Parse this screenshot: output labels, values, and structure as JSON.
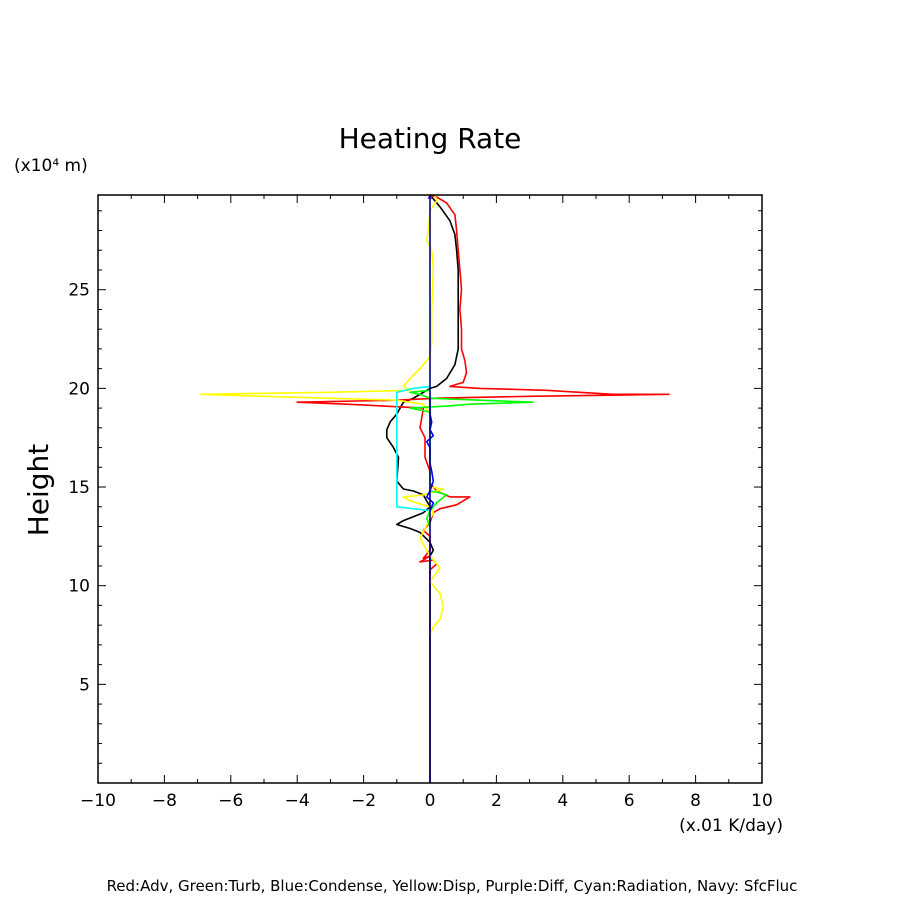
{
  "chart_data": {
    "type": "line",
    "title": "Heating Rate",
    "ylabel": "Height",
    "yunit": "(x10⁴ m)",
    "xunit": "(x.01 K/day)",
    "xlim": [
      -10,
      10
    ],
    "ylim": [
      0,
      29.8
    ],
    "xticks": [
      -10,
      -8,
      -6,
      -4,
      -2,
      0,
      2,
      4,
      6,
      8,
      10
    ],
    "xtick_labels": [
      "−10",
      "−8",
      "−6",
      "−4",
      "−2",
      "0",
      "2",
      "4",
      "6",
      "8",
      "10"
    ],
    "yticks": [
      5,
      10,
      15,
      20,
      25
    ],
    "ytick_labels": [
      "5",
      "10",
      "15",
      "20",
      "25"
    ],
    "grid": false,
    "footnote": "Red:Adv, Green:Turb, Blue:Condense, Yellow:Disp, Purple:Diff, Cyan:Radiation, Navy: SfcFluc",
    "colors": {
      "adv": "#ff0000",
      "turb": "#00ff00",
      "condense": "#0000ff",
      "disp": "#ffff00",
      "diff": "#a020f0",
      "radiation": "#00ffff",
      "sfcfluc": "#000080",
      "black": "#000000"
    },
    "series": [
      {
        "color": "#000000",
        "points": [
          [
            0,
            0
          ],
          [
            0,
            11.5
          ],
          [
            0.1,
            11.8
          ],
          [
            0,
            12.2
          ],
          [
            -0.3,
            12.7
          ],
          [
            -0.6,
            12.9
          ],
          [
            -1,
            13.1
          ],
          [
            -0.8,
            13.3
          ],
          [
            -0.2,
            13.7
          ],
          [
            0,
            14
          ],
          [
            -0.2,
            14.6
          ],
          [
            -0.5,
            14.8
          ],
          [
            -0.8,
            14.9
          ],
          [
            -1,
            15.3
          ],
          [
            -0.95,
            16.5
          ],
          [
            -1.1,
            17
          ],
          [
            -1.3,
            17.5
          ],
          [
            -1.3,
            17.9
          ],
          [
            -1.2,
            18.3
          ],
          [
            -1,
            18.7
          ],
          [
            -0.8,
            19.3
          ],
          [
            -0.5,
            19.5
          ],
          [
            -0.2,
            19.8
          ],
          [
            0,
            20
          ],
          [
            0.2,
            20.1
          ],
          [
            0.5,
            20.5
          ],
          [
            0.75,
            21.2
          ],
          [
            0.85,
            22
          ],
          [
            0.85,
            23
          ],
          [
            0.85,
            24
          ],
          [
            0.85,
            25
          ],
          [
            0.85,
            26
          ],
          [
            0.8,
            27
          ],
          [
            0.75,
            27.8
          ],
          [
            0.6,
            28.5
          ],
          [
            0.3,
            29.2
          ],
          [
            0,
            29.8
          ]
        ]
      },
      {
        "color": "#ff0000",
        "points": [
          [
            0,
            0
          ],
          [
            0,
            10.8
          ],
          [
            0.2,
            11.1
          ],
          [
            0.1,
            11.3
          ],
          [
            -0.3,
            11.2
          ],
          [
            0,
            11.5
          ],
          [
            -0.2,
            11.4
          ],
          [
            0,
            11.8
          ],
          [
            0,
            12.5
          ],
          [
            -0.2,
            12.8
          ],
          [
            0,
            13.2
          ],
          [
            0.1,
            13.7
          ],
          [
            0.3,
            13.9
          ],
          [
            0.8,
            14.1
          ],
          [
            1.2,
            14.5
          ],
          [
            0.6,
            14.5
          ],
          [
            0.2,
            14.8
          ],
          [
            0,
            15.2
          ],
          [
            0,
            15.8
          ],
          [
            -0.15,
            16.5
          ],
          [
            -0.15,
            17.5
          ],
          [
            -0.3,
            18
          ],
          [
            -0.25,
            18.5
          ],
          [
            -0.2,
            19
          ],
          [
            -2.5,
            19.2
          ],
          [
            -4,
            19.3
          ],
          [
            -1,
            19.4
          ],
          [
            0.2,
            19.5
          ],
          [
            3,
            19.6
          ],
          [
            7.2,
            19.7
          ],
          [
            5.5,
            19.7
          ],
          [
            3.5,
            19.9
          ],
          [
            1.5,
            20
          ],
          [
            0.6,
            20.1
          ],
          [
            1,
            20.3
          ],
          [
            1.1,
            20.8
          ],
          [
            1.05,
            21.4
          ],
          [
            0.95,
            22
          ],
          [
            0.95,
            23
          ],
          [
            0.9,
            24
          ],
          [
            0.95,
            25
          ],
          [
            0.9,
            26
          ],
          [
            0.85,
            27
          ],
          [
            0.8,
            28
          ],
          [
            0.75,
            28.8
          ],
          [
            0.5,
            29.4
          ],
          [
            0.2,
            29.7
          ],
          [
            0,
            29.8
          ]
        ]
      },
      {
        "color": "#ffff00",
        "points": [
          [
            0,
            7.5
          ],
          [
            0.1,
            7.9
          ],
          [
            0.3,
            8.3
          ],
          [
            0.4,
            8.9
          ],
          [
            0.3,
            9.6
          ],
          [
            0,
            10.2
          ],
          [
            0.3,
            10.9
          ],
          [
            0.1,
            11.3
          ],
          [
            -0.1,
            11.8
          ],
          [
            -0.3,
            12.4
          ],
          [
            -0.15,
            12.9
          ],
          [
            0,
            13.4
          ],
          [
            0.1,
            13.7
          ],
          [
            0,
            14
          ],
          [
            -0.6,
            14.3
          ],
          [
            -0.8,
            14.5
          ],
          [
            -0.2,
            14.6
          ],
          [
            0.2,
            14.8
          ],
          [
            0.4,
            14.9
          ],
          [
            0,
            15
          ],
          [
            0,
            18.7
          ],
          [
            -0.2,
            19.2
          ],
          [
            -1,
            19.4
          ],
          [
            -5,
            19.6
          ],
          [
            -6.9,
            19.7
          ],
          [
            -3,
            19.8
          ],
          [
            -0.6,
            19.9
          ],
          [
            -0.8,
            20.1
          ],
          [
            -0.6,
            20.5
          ],
          [
            -0.3,
            21
          ],
          [
            0,
            21.6
          ],
          [
            0.05,
            22.3
          ],
          [
            0.05,
            24
          ],
          [
            0.1,
            26
          ],
          [
            0.05,
            27
          ],
          [
            -0.1,
            27.5
          ],
          [
            -0.05,
            28
          ],
          [
            0,
            29
          ],
          [
            0.2,
            29.5
          ],
          [
            0.15,
            29.8
          ]
        ]
      },
      {
        "color": "#00ff00",
        "points": [
          [
            0,
            13
          ],
          [
            -0.1,
            13.4
          ],
          [
            0,
            13.8
          ],
          [
            0.2,
            14.2
          ],
          [
            0.5,
            14.6
          ],
          [
            0.3,
            14.7
          ],
          [
            0,
            14.8
          ],
          [
            0,
            18.8
          ],
          [
            -0.6,
            19
          ],
          [
            0.5,
            19.1
          ],
          [
            1.2,
            19.2
          ],
          [
            3.1,
            19.3
          ],
          [
            1.5,
            19.4
          ],
          [
            0,
            19.5
          ],
          [
            -0.3,
            19.7
          ],
          [
            -0.6,
            19.8
          ],
          [
            0,
            19.9
          ]
        ]
      },
      {
        "color": "#00ffff",
        "points": [
          [
            0,
            13.8
          ],
          [
            -1,
            14
          ],
          [
            -1,
            15
          ],
          [
            -1,
            16
          ],
          [
            -1,
            17
          ],
          [
            -1,
            18
          ],
          [
            -1,
            19
          ],
          [
            -1,
            19.8
          ],
          [
            -0.5,
            20
          ],
          [
            0,
            20.1
          ]
        ]
      },
      {
        "color": "#0000ff",
        "points": [
          [
            0,
            13.8
          ],
          [
            0.1,
            14.2
          ],
          [
            -0.1,
            14.5
          ],
          [
            0,
            14.8
          ],
          [
            0.1,
            15.3
          ],
          [
            0.05,
            15.8
          ],
          [
            0,
            16.2
          ],
          [
            0,
            17
          ],
          [
            -0.1,
            17.3
          ],
          [
            0.1,
            17.6
          ],
          [
            0,
            17.9
          ],
          [
            0.05,
            18.3
          ],
          [
            0,
            18.7
          ],
          [
            0,
            19.5
          ]
        ]
      },
      {
        "color": "#a020f0",
        "points": [
          [
            -0.05,
            29.6
          ],
          [
            0,
            29.8
          ],
          [
            0.05,
            29.6
          ]
        ]
      },
      {
        "color": "#000080",
        "points": [
          [
            0,
            0
          ],
          [
            0,
            29.8
          ]
        ]
      }
    ]
  }
}
